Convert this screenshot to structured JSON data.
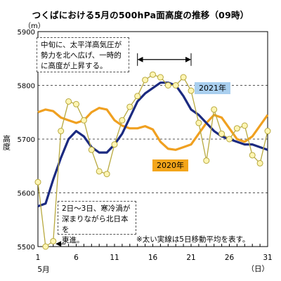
{
  "title": "つくばにおける5月の500hPa面高度の推移（09時）",
  "unit_label": "（m）",
  "ylabel": "高度",
  "xunit": "（日）",
  "month_label": "5月",
  "annotations": {
    "top": [
      "中旬に、太平洋高気圧が",
      "勢力を北へ広げ、一時的",
      "に高度が上昇する。"
    ],
    "bottom": [
      "2日～3日、寒冷渦が",
      "深まりながら北日本を",
      "東進。"
    ],
    "footnote": "※太い実線は5日移動平均を表す。"
  },
  "colors": {
    "daily": "#b8a93f",
    "daily_marker": "#fff5b3",
    "avg2021": "#1b2a80",
    "line2020": "#f0a020",
    "grid": "#555555"
  },
  "chart_data": {
    "type": "line",
    "title": "つくばにおける5月の500hPa面高度の推移（09時）",
    "xlabel": "（日）",
    "ylabel": "高度",
    "x": [
      1,
      2,
      3,
      4,
      5,
      6,
      7,
      8,
      9,
      10,
      11,
      12,
      13,
      14,
      15,
      16,
      17,
      18,
      19,
      20,
      21,
      22,
      23,
      24,
      25,
      26,
      27,
      28,
      29,
      30,
      31
    ],
    "xlim": [
      1,
      31
    ],
    "ylim": [
      5500,
      5900
    ],
    "yticks": [
      5500,
      5600,
      5700,
      5800,
      5900
    ],
    "xticks": [
      1,
      6,
      11,
      16,
      21,
      26,
      31
    ],
    "grid": "dashed horizontal",
    "series": [
      {
        "name": "",
        "style": "thin line with circle markers",
        "values": [
          5620,
          5500,
          5510,
          5715,
          5770,
          5765,
          5735,
          5680,
          5640,
          5635,
          5690,
          5735,
          5760,
          5780,
          5810,
          5820,
          5815,
          5800,
          5800,
          5815,
          5790,
          5730,
          5660,
          5755,
          5710,
          5700,
          5720,
          5725,
          5670,
          5655,
          5715
        ]
      },
      {
        "name": "2021年",
        "style": "thick line (5-day moving average)",
        "values": [
          5575,
          5580,
          5625,
          5665,
          5700,
          5715,
          5705,
          5685,
          5675,
          5675,
          5690,
          5710,
          5740,
          5770,
          5785,
          5795,
          5805,
          5805,
          5800,
          5780,
          5755,
          5745,
          5730,
          5715,
          5705,
          5700,
          5695,
          5690,
          5690,
          5685,
          5680
        ]
      },
      {
        "name": "2020年",
        "style": "thick line",
        "values": [
          5750,
          5755,
          5752,
          5740,
          5735,
          5730,
          5735,
          5750,
          5758,
          5755,
          5735,
          5725,
          5720,
          5720,
          5724,
          5718,
          5695,
          5682,
          5680,
          5685,
          5690,
          5710,
          5730,
          5745,
          5740,
          5720,
          5700,
          5695,
          5705,
          5725,
          5745
        ]
      }
    ],
    "arrows": [
      {
        "type": "range",
        "from_day": 14,
        "to_day": 21,
        "at_value": 5848
      },
      {
        "type": "pointer",
        "from_day": 4.6,
        "to_day": 3.4,
        "at_value": 5505
      }
    ]
  }
}
